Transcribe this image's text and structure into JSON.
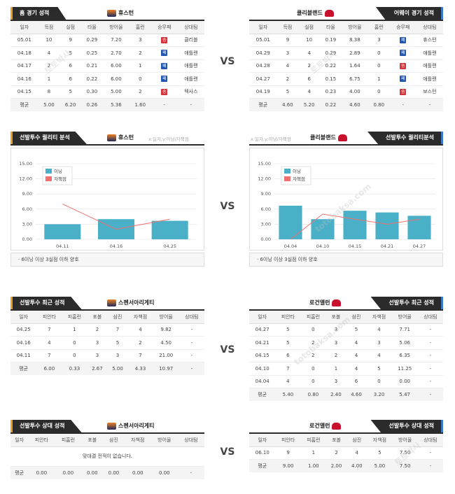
{
  "vs": "VS",
  "p1": {
    "left": {
      "tab": "홈 경기 성적",
      "team": "휴스턴",
      "headers": [
        "일자",
        "득점",
        "실점",
        "타율",
        "방어율",
        "홈런",
        "승무패",
        "상대팀"
      ],
      "rows": [
        [
          "05.01",
          "10",
          "9",
          "0.29",
          "7.20",
          "3",
          "승",
          "클리블"
        ],
        [
          "04.18",
          "4",
          "5",
          "0.25",
          "2.70",
          "2",
          "패",
          "애틀랜"
        ],
        [
          "04.17",
          "2",
          "6",
          "0.21",
          "6.00",
          "1",
          "패",
          "애틀랜"
        ],
        [
          "04.16",
          "1",
          "6",
          "0.22",
          "6.00",
          "0",
          "패",
          "애틀랜"
        ],
        [
          "04.15",
          "8",
          "5",
          "0.30",
          "5.00",
          "2",
          "승",
          "텍사스"
        ]
      ],
      "avg": [
        "평균",
        "5.00",
        "6.20",
        "0.26",
        "5.36",
        "1.60",
        "-",
        "-"
      ]
    },
    "right": {
      "tab": "어웨이 경기 성적",
      "team": "클리블랜드",
      "headers": [
        "일자",
        "득점",
        "실점",
        "타율",
        "방어율",
        "홈런",
        "승무패",
        "상대팀"
      ],
      "rows": [
        [
          "05.01",
          "9",
          "10",
          "0.19",
          "8.38",
          "3",
          "패",
          "휴스턴"
        ],
        [
          "04.29",
          "3",
          "4",
          "0.29",
          "2.89",
          "0",
          "패",
          "애틀랜"
        ],
        [
          "04.28",
          "4",
          "2",
          "0.22",
          "1.64",
          "0",
          "승",
          "애틀랜"
        ],
        [
          "04.27",
          "2",
          "6",
          "0.15",
          "6.75",
          "1",
          "패",
          "애틀랜"
        ],
        [
          "04.19",
          "5",
          "4",
          "0.23",
          "4.00",
          "0",
          "승",
          "보스턴"
        ]
      ],
      "avg": [
        "평균",
        "4.60",
        "5.20",
        "0.22",
        "4.60",
        "0.80",
        "-",
        "-"
      ]
    }
  },
  "p2": {
    "left": {
      "tab": "선발투수 퀄리티 분석",
      "team": "휴스턴",
      "note": "x:일자,y:이닝/자책점",
      "footnote": "6이닝 이상 3실점 이하 양호",
      "legend": [
        "이닝",
        "자책점"
      ]
    },
    "right": {
      "tab": "선발투수 퀄리티분석",
      "team": "클리블랜드",
      "note": "x:일자,y:이닝/자책점",
      "footnote": "6이닝 이상 3실점 이하 양호",
      "legend": [
        "이닝",
        "자책점"
      ]
    }
  },
  "p3": {
    "left": {
      "tab": "선발투수 최근 성적",
      "team": "스펜서아리게티",
      "headers": [
        "일자",
        "피안타",
        "피홈런",
        "포볼",
        "삼진",
        "자책점",
        "방어율",
        "상대팀"
      ],
      "rows": [
        [
          "04.25",
          "7",
          "1",
          "2",
          "7",
          "4",
          "9.82",
          "-"
        ],
        [
          "04.16",
          "4",
          "0",
          "3",
          "5",
          "2",
          "4.50",
          "-"
        ],
        [
          "04.11",
          "7",
          "0",
          "3",
          "3",
          "7",
          "21.00",
          "-"
        ]
      ],
      "avg": [
        "평균",
        "6.00",
        "0.33",
        "2.67",
        "5.00",
        "4.33",
        "10.97",
        "-"
      ]
    },
    "right": {
      "tab": "선발투수 최근 성적",
      "team": "로건앨런",
      "headers": [
        "일자",
        "피안타",
        "피홈런",
        "포볼",
        "삼진",
        "자책점",
        "방어율",
        "상대팀"
      ],
      "rows": [
        [
          "04.27",
          "5",
          "0",
          "3",
          "5",
          "4",
          "7.71",
          "-"
        ],
        [
          "04.21",
          "5",
          "2",
          "3",
          "4",
          "3",
          "5.06",
          "-"
        ],
        [
          "04.15",
          "6",
          "2",
          "2",
          "4",
          "4",
          "6.35",
          "-"
        ],
        [
          "04.10",
          "7",
          "0",
          "1",
          "4",
          "5",
          "11.25",
          "-"
        ],
        [
          "04.04",
          "4",
          "0",
          "3",
          "6",
          "0",
          "0.00",
          "-"
        ]
      ],
      "avg": [
        "평균",
        "5.40",
        "0.80",
        "2.40",
        "4.60",
        "3.20",
        "5.47",
        "-"
      ]
    }
  },
  "p4": {
    "left": {
      "tab": "선발투수 상대 성적",
      "team": "스펜서아리게티",
      "headers": [
        "일자",
        "피안타",
        "피홈런",
        "포볼",
        "삼진",
        "자책점",
        "방어율",
        "상대팀"
      ],
      "empty": "맞대결 전적이 없습니다.",
      "avg": [
        "평균",
        "0.00",
        "0.00",
        "0.00",
        "0.00",
        "0.00",
        "0.00",
        "-"
      ]
    },
    "right": {
      "tab": "선발투수 상대 성적",
      "team": "로건앨런",
      "headers": [
        "일자",
        "피안타",
        "피홈런",
        "포볼",
        "삼진",
        "자책점",
        "방어율",
        "상대팀"
      ],
      "rows": [
        [
          "06.10",
          "9",
          "1",
          "2",
          "4",
          "5",
          "7.50",
          "-"
        ]
      ],
      "avg": [
        "평균",
        "9.00",
        "1.00",
        "2.00",
        "4.00",
        "5.00",
        "7.50",
        "-"
      ]
    }
  },
  "watermark": [
    "토토박사",
    "totobaksa.com"
  ],
  "chart_data": [
    {
      "type": "bar",
      "categories": [
        "04.11",
        "04.16",
        "04.25"
      ],
      "ylim": [
        0,
        15
      ],
      "yticks": [
        "0.00",
        "3.00",
        "6.00",
        "9.00",
        "12.00",
        "15.00"
      ],
      "series": [
        {
          "name": "이닝",
          "values": [
            3.0,
            4.0,
            3.67
          ]
        },
        {
          "name": "자책점",
          "values": [
            7,
            2,
            4
          ]
        }
      ],
      "colors": [
        "#4ab0c8",
        "#f07070"
      ]
    },
    {
      "type": "bar",
      "categories": [
        "04.04",
        "04.10",
        "04.15",
        "04.21",
        "04.27"
      ],
      "ylim": [
        0,
        15
      ],
      "yticks": [
        "0.00",
        "3.00",
        "6.00",
        "9.00",
        "12.00",
        "15.00"
      ],
      "series": [
        {
          "name": "이닝",
          "values": [
            6.67,
            4.0,
            5.67,
            5.33,
            4.67
          ]
        },
        {
          "name": "자책점",
          "values": [
            0,
            5,
            4,
            3,
            4
          ]
        }
      ],
      "colors": [
        "#4ab0c8",
        "#f07070"
      ]
    }
  ]
}
